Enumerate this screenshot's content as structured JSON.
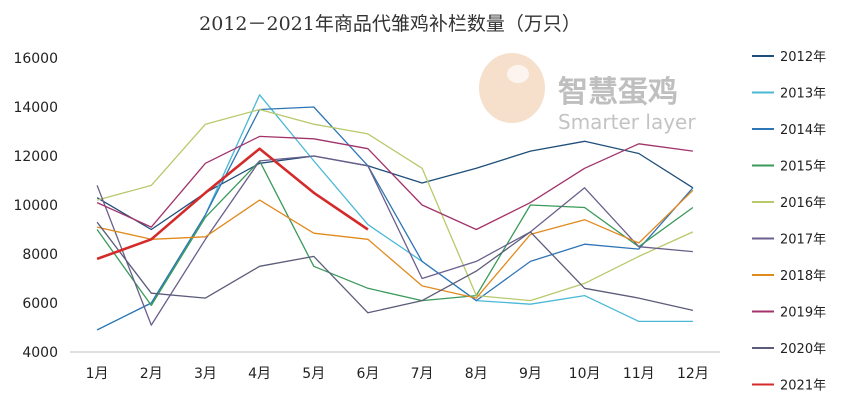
{
  "chart_data": {
    "type": "line",
    "title": "2012－2021年商品代雏鸡补栏数量（万只）",
    "xlabel": "",
    "ylabel": "",
    "categories": [
      "1月",
      "2月",
      "3月",
      "4月",
      "5月",
      "6月",
      "7月",
      "8月",
      "9月",
      "10月",
      "11月",
      "12月"
    ],
    "ylim": [
      4000,
      16000
    ],
    "yticks": [
      4000,
      6000,
      8000,
      10000,
      12000,
      14000,
      16000
    ],
    "grid": false,
    "legend_position": "right",
    "series": [
      {
        "name": "2012年",
        "color": "#1f4e79",
        "values": [
          10300,
          9000,
          10500,
          11700,
          12000,
          11600,
          10900,
          11500,
          12200,
          12600,
          12100,
          10700
        ]
      },
      {
        "name": "2013年",
        "color": "#4bb8d6",
        "values": [
          4900,
          6000,
          9600,
          14500,
          11800,
          9200,
          7700,
          6100,
          5950,
          6300,
          5250,
          5250
        ]
      },
      {
        "name": "2014年",
        "color": "#2e75b6",
        "values": [
          4900,
          6000,
          9600,
          13900,
          14000,
          11600,
          7700,
          6100,
          7700,
          8400,
          8200,
          10700
        ]
      },
      {
        "name": "2015年",
        "color": "#3a9a5a",
        "values": [
          9000,
          5900,
          9500,
          11800,
          7500,
          6600,
          6100,
          6300,
          10000,
          9900,
          8300,
          9900
        ]
      },
      {
        "name": "2016年",
        "color": "#b7c96b",
        "values": [
          10200,
          10800,
          13300,
          13900,
          13300,
          12900,
          11500,
          6300,
          6100,
          6800,
          7900,
          8900
        ]
      },
      {
        "name": "2017年",
        "color": "#6b5f8c",
        "values": [
          10800,
          5100,
          8600,
          11800,
          12000,
          11600,
          7000,
          7700,
          8900,
          10700,
          8300,
          8100
        ]
      },
      {
        "name": "2018年",
        "color": "#e08a1e",
        "values": [
          9100,
          8600,
          8700,
          10200,
          8850,
          8600,
          6700,
          6200,
          8800,
          9400,
          8450,
          10600
        ]
      },
      {
        "name": "2019年",
        "color": "#a2336a",
        "values": [
          10100,
          9100,
          11700,
          12800,
          12700,
          12300,
          10000,
          9000,
          10100,
          11500,
          12500,
          12200
        ]
      },
      {
        "name": "2020年",
        "color": "#5c5c7a",
        "values": [
          9300,
          6400,
          6200,
          7500,
          7900,
          5600,
          6100,
          7300,
          8900,
          6600,
          6200,
          5700
        ]
      },
      {
        "name": "2021年",
        "color": "#d42a2a",
        "values": [
          7800,
          8600,
          10500,
          12300,
          10500,
          9000,
          null,
          null,
          null,
          null,
          null,
          null
        ]
      }
    ]
  },
  "watermark": {
    "cn": "智慧蛋鸡",
    "en": "Smarter layer"
  }
}
